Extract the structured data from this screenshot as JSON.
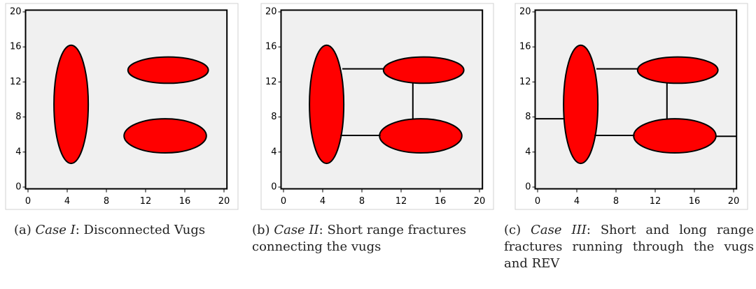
{
  "chart_data": [
    {
      "type": "diagram",
      "xlim": [
        -0.25,
        20.3
      ],
      "ylim": [
        -0.2,
        20.2
      ],
      "xticks": [
        0,
        4,
        8,
        12,
        16,
        20
      ],
      "yticks": [
        0,
        4,
        8,
        12,
        16,
        20
      ],
      "background": "#f0f0f0",
      "color": "#ff0000",
      "ellipses": [
        {
          "cx": 4.4,
          "cy": 9.45,
          "rx": 1.75,
          "ry": 6.75
        },
        {
          "cx": 14.3,
          "cy": 13.35,
          "rx": 4.1,
          "ry": 1.5
        },
        {
          "cx": 14,
          "cy": 5.85,
          "rx": 4.2,
          "ry": 1.95
        }
      ],
      "lines": [],
      "caption": {
        "label": "(a)",
        "case": "Case I",
        "text": ": Disconnected Vugs"
      }
    },
    {
      "type": "diagram",
      "xlim": [
        -0.25,
        20.3
      ],
      "ylim": [
        -0.2,
        20.2
      ],
      "xticks": [
        0,
        4,
        8,
        12,
        16,
        20
      ],
      "yticks": [
        0,
        4,
        8,
        12,
        16,
        20
      ],
      "background": "#f0f0f0",
      "color": "#ff0000",
      "ellipses": [
        {
          "cx": 4.4,
          "cy": 9.45,
          "rx": 1.75,
          "ry": 6.75
        },
        {
          "cx": 14.3,
          "cy": 13.35,
          "rx": 4.1,
          "ry": 1.5
        },
        {
          "cx": 14,
          "cy": 5.85,
          "rx": 4.2,
          "ry": 1.95
        }
      ],
      "lines": [
        {
          "x1": 6,
          "y1": 13.5,
          "x2": 10.3,
          "y2": 13.5
        },
        {
          "x1": 13.2,
          "y1": 11.85,
          "x2": 13.2,
          "y2": 7.8
        },
        {
          "x1": 5.8,
          "y1": 5.9,
          "x2": 9.9,
          "y2": 5.9
        }
      ],
      "caption": {
        "label": "(b)",
        "case": "Case II",
        "text": ": Short range fractures connecting the vugs"
      }
    },
    {
      "type": "diagram",
      "xlim": [
        -0.25,
        20.3
      ],
      "ylim": [
        -0.2,
        20.2
      ],
      "xticks": [
        0,
        4,
        8,
        12,
        16,
        20
      ],
      "yticks": [
        0,
        4,
        8,
        12,
        16,
        20
      ],
      "background": "#f0f0f0",
      "color": "#ff0000",
      "ellipses": [
        {
          "cx": 4.4,
          "cy": 9.45,
          "rx": 1.75,
          "ry": 6.75
        },
        {
          "cx": 14.3,
          "cy": 13.35,
          "rx": 4.1,
          "ry": 1.5
        },
        {
          "cx": 14,
          "cy": 5.85,
          "rx": 4.2,
          "ry": 1.95
        }
      ],
      "lines": [
        {
          "x1": 6,
          "y1": 13.5,
          "x2": 10.3,
          "y2": 13.5
        },
        {
          "x1": 13.2,
          "y1": 11.85,
          "x2": 13.2,
          "y2": 7.8
        },
        {
          "x1": 5.8,
          "y1": 5.9,
          "x2": 9.9,
          "y2": 5.9
        },
        {
          "x1": -0.25,
          "y1": 7.8,
          "x2": 2.65,
          "y2": 7.8
        },
        {
          "x1": 18.2,
          "y1": 5.8,
          "x2": 20.3,
          "y2": 5.8
        }
      ],
      "caption": {
        "label": "(c)",
        "case": "Case III",
        "text": ": Short and long range fractures running through the vugs and REV"
      }
    }
  ]
}
